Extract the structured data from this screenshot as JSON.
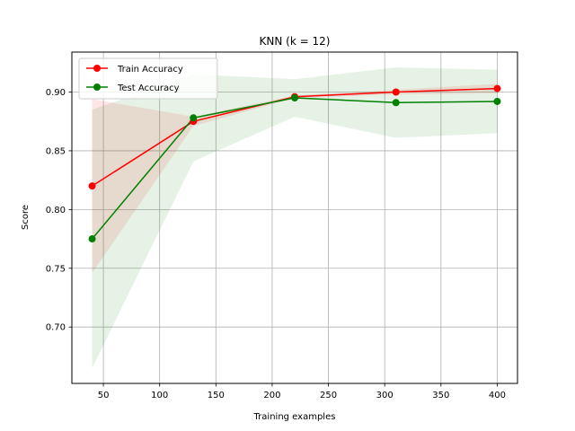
{
  "chart_data": {
    "type": "line",
    "title": "KNN (k = 12)",
    "xlabel": "Training examples",
    "ylabel": "Score",
    "xlim": [
      22,
      418
    ],
    "ylim": [
      0.652,
      0.934
    ],
    "xticks": [
      50,
      100,
      150,
      200,
      250,
      300,
      350,
      400
    ],
    "yticks": [
      0.7,
      0.75,
      0.8,
      0.85,
      0.9
    ],
    "grid": true,
    "legend_position": "top-left",
    "x": [
      40,
      130,
      220,
      310,
      400
    ],
    "series": [
      {
        "name": "Train Accuracy",
        "color": "#ff0000",
        "values": [
          0.82,
          0.875,
          0.896,
          0.9,
          0.903
        ],
        "band_lower": [
          0.746,
          0.871,
          0.895,
          0.898,
          0.899
        ],
        "band_upper": [
          0.894,
          0.879,
          0.897,
          0.902,
          0.907
        ]
      },
      {
        "name": "Test Accuracy",
        "color": "#008000",
        "values": [
          0.775,
          0.878,
          0.895,
          0.891,
          0.892
        ],
        "band_lower": [
          0.665,
          0.841,
          0.879,
          0.861,
          0.865
        ],
        "band_upper": [
          0.885,
          0.915,
          0.911,
          0.921,
          0.919
        ]
      }
    ]
  }
}
